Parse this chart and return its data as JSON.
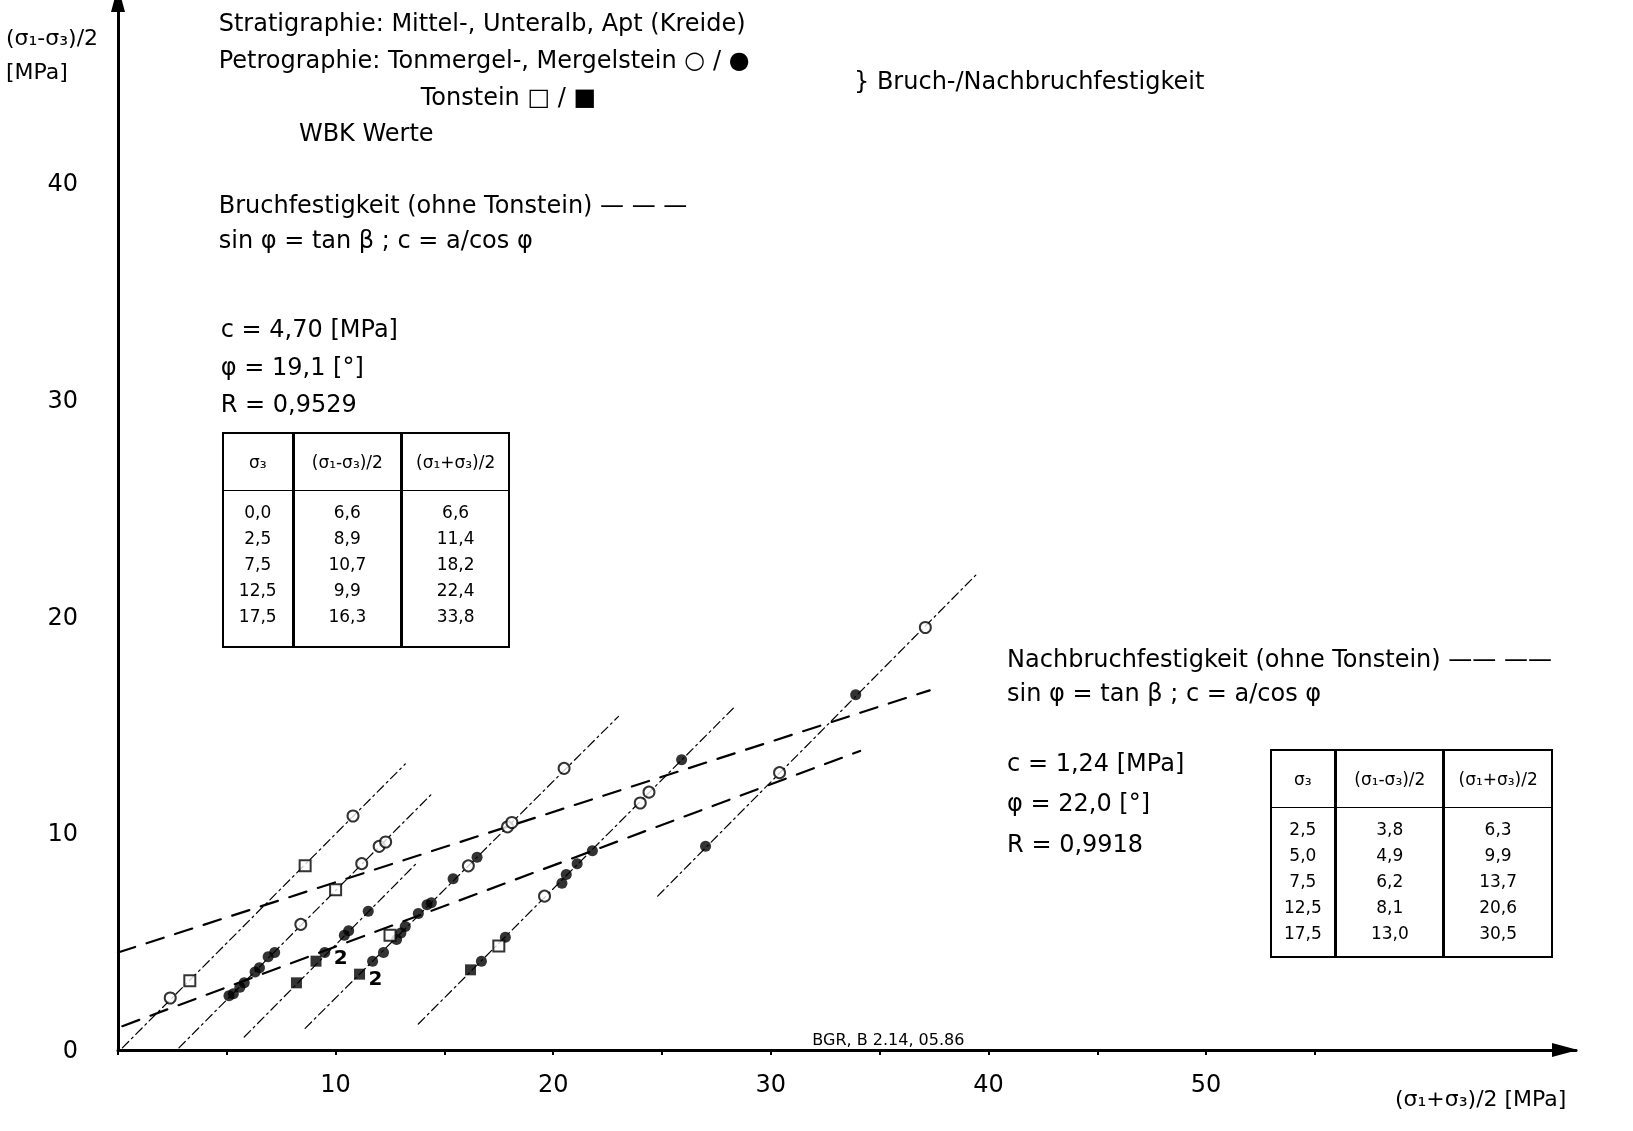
{
  "chart_data": {
    "type": "scatter",
    "xlabel": "(σ₁+σ₃)/2 [MPa]",
    "ylabel": "(σ₁-σ₃)/2 [MPa]",
    "xlim": [
      0,
      67
    ],
    "ylim": [
      0,
      48
    ],
    "xticks": [
      {
        "value": 0,
        "label": null
      },
      {
        "value": 5,
        "label": null
      },
      10,
      {
        "value": 15,
        "label": null
      },
      20,
      {
        "value": 25,
        "label": null
      },
      30,
      {
        "value": 35,
        "label": null
      },
      40,
      {
        "value": 45,
        "label": null
      },
      50,
      {
        "value": 55,
        "label": null
      }
    ],
    "yticks": [
      0,
      10,
      20,
      30,
      40
    ],
    "grid": false,
    "series": [
      {
        "color": "#ffffff",
        "marker": "circle",
        "x": [
          2.4,
          8.4,
          10.8,
          11.2,
          12.0,
          12.3,
          16.1,
          17.9,
          18.1,
          19.6,
          20.5,
          24.0,
          24.4,
          30.4,
          37.1
        ],
        "values": [
          2.4,
          5.8,
          10.8,
          8.6,
          9.4,
          9.6,
          8.5,
          10.3,
          10.5,
          7.1,
          13.0,
          11.4,
          11.9,
          12.8,
          19.5
        ]
      },
      {
        "color": "#000000",
        "marker": "circle",
        "x": [
          5.1,
          5.3,
          5.6,
          5.8,
          6.3,
          6.5,
          6.9,
          7.2,
          9.5,
          10.4,
          10.6,
          11.5,
          11.7,
          12.2,
          12.8,
          13.0,
          13.2,
          13.8,
          14.2,
          14.4,
          15.4,
          16.5,
          16.7,
          17.8,
          20.4,
          20.6,
          21.1,
          21.8,
          25.9,
          27.0,
          33.9
        ],
        "values": [
          2.5,
          2.6,
          2.9,
          3.1,
          3.6,
          3.8,
          4.3,
          4.5,
          4.5,
          5.3,
          5.5,
          6.4,
          4.1,
          4.5,
          5.1,
          5.4,
          5.7,
          6.3,
          6.7,
          6.8,
          7.9,
          8.9,
          4.1,
          5.2,
          7.7,
          8.1,
          8.6,
          9.2,
          13.4,
          9.4,
          16.4
        ]
      },
      {
        "color": "#ffffff",
        "marker": "square",
        "x": [
          3.3,
          8.6,
          10.0,
          12.5,
          17.5
        ],
        "values": [
          3.2,
          8.5,
          7.4,
          5.3,
          4.8
        ]
      },
      {
        "color": "#000000",
        "marker": "square",
        "x": [
          8.2,
          9.1,
          11.1,
          16.2
        ],
        "values": [
          3.1,
          4.1,
          3.5,
          3.7
        ]
      },
      {
        "type": "line",
        "color": "#000000",
        "marker": "none",
        "line_style": "dashed",
        "x": [
          0,
          37.3
        ],
        "values": [
          4.5,
          16.6
        ]
      },
      {
        "type": "line",
        "color": "#000000",
        "marker": "none",
        "line_style": "dashed",
        "x": [
          0.2,
          34.1
        ],
        "values": [
          1.1,
          13.8
        ]
      },
      {
        "type": "line",
        "color": "#000000",
        "marker": "none",
        "line_style": "dotted",
        "x": [
          0.2,
          13.2
        ],
        "values": [
          0.1,
          13.2
        ]
      },
      {
        "type": "line",
        "color": "#000000",
        "marker": "none",
        "line_style": "dotted",
        "x": [
          2.8,
          14.4
        ],
        "values": [
          0.1,
          11.8
        ]
      },
      {
        "type": "line",
        "color": "#000000",
        "marker": "none",
        "line_style": "dotted",
        "x": [
          5.8,
          13.7
        ],
        "values": [
          0.6,
          8.6
        ]
      },
      {
        "type": "line",
        "color": "#000000",
        "marker": "none",
        "line_style": "dotted",
        "x": [
          8.6,
          23.0
        ],
        "values": [
          1.0,
          15.4
        ]
      },
      {
        "type": "line",
        "color": "#000000",
        "marker": "none",
        "line_style": "dotted",
        "x": [
          13.8,
          28.3
        ],
        "values": [
          1.2,
          15.8
        ]
      },
      {
        "type": "line",
        "color": "#000000",
        "marker": "none",
        "line_style": "dotted",
        "x": [
          24.8,
          39.5
        ],
        "values": [
          7.1,
          22.0
        ]
      }
    ],
    "annotations": [
      "Stratigraphie: Mittel-, Unteralb, Apt (Kreide)",
      "Petrographie: Tonmergel-, Mergelstein ○ / ●",
      "Tonstein □ / ■",
      "} Bruch-/Nachbruchfestigkeit",
      "WBK Werte",
      "Bruchfestigkeit (ohne Tonstein) — — —",
      "sin φ = tan β ; c = a/cos φ",
      "c = 4,70 [MPa]",
      "φ = 19,1 [°]",
      "R = 0,9529",
      "σ₃\n0,0\n2,5\n7,5\n12,5\n17,5",
      "(σ₁-σ₃)/2\n6,6\n8,9\n10,7\n9,9\n16,3",
      "(σ₁+σ₃)/2\n6,6\n11,4\n18,2\n22,4\n33,8",
      "Nachbruchfestigkeit (ohne Tonstein) —— ——",
      "sin φ = tan β ; c = a/cos φ",
      "c = 1,24 [MPa]",
      "φ = 22,0 [°]",
      "R = 0,9918",
      "σ₃\n2,5\n5,0\n7,5\n12,5\n17,5",
      "(σ₁-σ₃)/2\n3,8\n4,9\n6,2\n8,1\n13,0",
      "(σ₁+σ₃)/2\n6,3\n9,9\n13,7\n20,6\n30,5",
      "BGR, B 2.14, 05.86",
      {
        "text": "2",
        "x": 9.5,
        "y": 4.5
      },
      {
        "text": "2",
        "x": 11.1,
        "y": 3.5
      }
    ]
  }
}
